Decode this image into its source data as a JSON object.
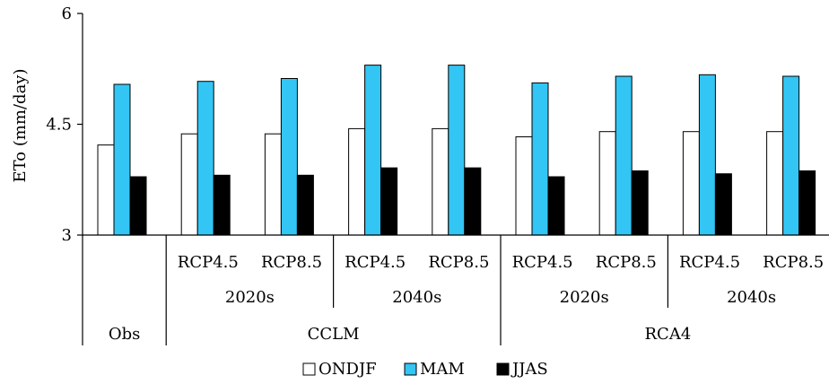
{
  "chart_data": {
    "type": "bar",
    "ylabel": "ETo (mm/day)",
    "ylim": [
      3,
      6
    ],
    "yticks": [
      "3",
      "4.5",
      "6"
    ],
    "grid": false,
    "legend_position": "bottom-center",
    "categories": [
      {
        "scenario": "",
        "period": "",
        "model": "Obs"
      },
      {
        "scenario": "RCP4.5",
        "period": "2020s",
        "model": "CCLM"
      },
      {
        "scenario": "RCP8.5",
        "period": "2020s",
        "model": "CCLM"
      },
      {
        "scenario": "RCP4.5",
        "period": "2040s",
        "model": "CCLM"
      },
      {
        "scenario": "RCP8.5",
        "period": "2040s",
        "model": "CCLM"
      },
      {
        "scenario": "RCP4.5",
        "period": "2020s",
        "model": "RCA4"
      },
      {
        "scenario": "RCP8.5",
        "period": "2020s",
        "model": "RCA4"
      },
      {
        "scenario": "RCP4.5",
        "period": "2040s",
        "model": "RCA4"
      },
      {
        "scenario": "RCP8.5",
        "period": "2040s",
        "model": "RCA4"
      }
    ],
    "period_groups": [
      {
        "label": "2020s",
        "model": "CCLM"
      },
      {
        "label": "2040s",
        "model": "CCLM"
      },
      {
        "label": "2020s",
        "model": "RCA4"
      },
      {
        "label": "2040s",
        "model": "RCA4"
      }
    ],
    "model_groups": [
      {
        "label": "Obs"
      },
      {
        "label": "CCLM"
      },
      {
        "label": "RCA4"
      }
    ],
    "series": [
      {
        "name": "ONDJF",
        "color": "#ffffff",
        "values": [
          4.22,
          4.37,
          4.37,
          4.44,
          4.44,
          4.33,
          4.4,
          4.4,
          4.4
        ]
      },
      {
        "name": "MAM",
        "color": "#33c5f3",
        "values": [
          5.04,
          5.08,
          5.12,
          5.3,
          5.3,
          5.06,
          5.15,
          5.17,
          5.15
        ]
      },
      {
        "name": "JJAS",
        "color": "#000000",
        "values": [
          3.79,
          3.81,
          3.81,
          3.91,
          3.91,
          3.79,
          3.87,
          3.83,
          3.87
        ]
      }
    ]
  }
}
